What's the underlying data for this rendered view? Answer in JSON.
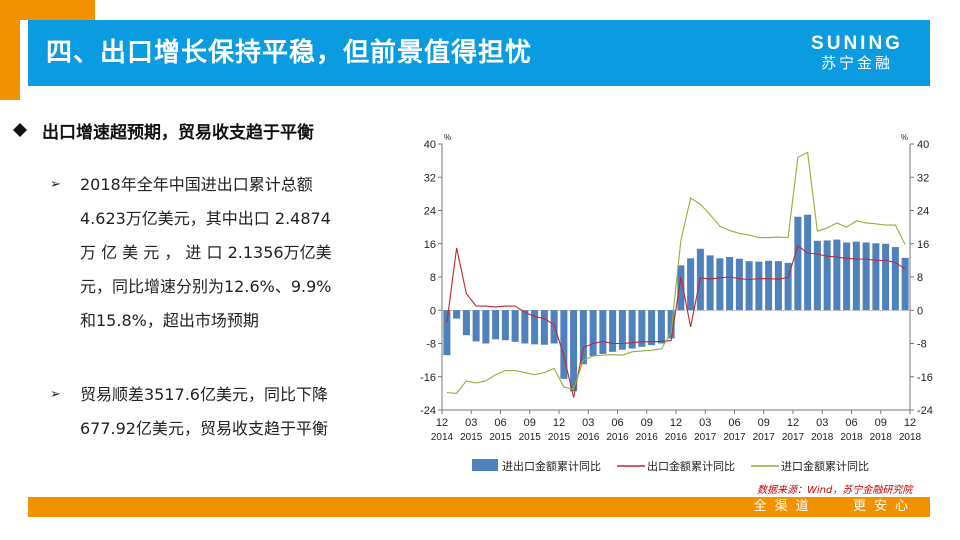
{
  "header": {
    "title": "四、出口增长保持平稳，但前景值得担忧",
    "logo_en": "SUNING",
    "logo_cn": "苏宁金融"
  },
  "section": {
    "subheading": "出口增速超预期，贸易收支趋于平衡",
    "bullets": [
      "2018年全年中国进出口累计总额4.623万亿美元，其中出口 2.4874 万 亿 美 元 ， 进 口 2.1356万亿美元，同比增速分别为12.6%、9.9%和15.8%，超出市场预期",
      "贸易顺差3517.6亿美元，同比下降677.92亿美元，贸易收支趋于平衡"
    ]
  },
  "footer": {
    "slogan": "全渠道   更安心",
    "source": "数据来源：Wind，苏宁金融研究院"
  },
  "colors": {
    "header_blue": "#0a9be0",
    "orange": "#f39200",
    "bar_blue": "#4f81bd",
    "export_red": "#c0272d",
    "import_green": "#8fb03a"
  },
  "chart_data": {
    "type": "bar",
    "unit_left": "%",
    "unit_right": "%",
    "ylim": [
      -24,
      40
    ],
    "yticks": [
      -24,
      -16,
      -8,
      0,
      8,
      16,
      24,
      32,
      40
    ],
    "xticks": [
      {
        "top": "12",
        "bottom": "2014"
      },
      {
        "top": "03",
        "bottom": "2015"
      },
      {
        "top": "06",
        "bottom": "2015"
      },
      {
        "top": "09",
        "bottom": "2015"
      },
      {
        "top": "12",
        "bottom": "2015"
      },
      {
        "top": "03",
        "bottom": "2016"
      },
      {
        "top": "06",
        "bottom": "2016"
      },
      {
        "top": "09",
        "bottom": "2016"
      },
      {
        "top": "12",
        "bottom": "2016"
      },
      {
        "top": "03",
        "bottom": "2017"
      },
      {
        "top": "06",
        "bottom": "2017"
      },
      {
        "top": "09",
        "bottom": "2017"
      },
      {
        "top": "12",
        "bottom": "2017"
      },
      {
        "top": "03",
        "bottom": "2018"
      },
      {
        "top": "06",
        "bottom": "2018"
      },
      {
        "top": "09",
        "bottom": "2018"
      },
      {
        "top": "12",
        "bottom": "2018"
      }
    ],
    "categories": [
      "2015-01",
      "2015-02",
      "2015-03",
      "2015-04",
      "2015-05",
      "2015-06",
      "2015-07",
      "2015-08",
      "2015-09",
      "2015-10",
      "2015-11",
      "2015-12",
      "2016-01",
      "2016-02",
      "2016-03",
      "2016-04",
      "2016-05",
      "2016-06",
      "2016-07",
      "2016-08",
      "2016-09",
      "2016-10",
      "2016-11",
      "2016-12",
      "2017-01",
      "2017-02",
      "2017-03",
      "2017-04",
      "2017-05",
      "2017-06",
      "2017-07",
      "2017-08",
      "2017-09",
      "2017-10",
      "2017-11",
      "2017-12",
      "2018-01",
      "2018-02",
      "2018-03",
      "2018-04",
      "2018-05",
      "2018-06",
      "2018-07",
      "2018-08",
      "2018-09",
      "2018-10",
      "2018-11",
      "2018-12"
    ],
    "series": [
      {
        "name": "进出口金额累计同比",
        "type": "bar",
        "values": [
          -10.8,
          -2,
          -6,
          -7.5,
          -8,
          -7,
          -7.2,
          -7.6,
          -8,
          -8.2,
          -8.3,
          -8,
          -16.5,
          -19.5,
          -13,
          -11,
          -10.5,
          -10,
          -9.5,
          -9.2,
          -8.8,
          -8.4,
          -8,
          -6.8,
          10.8,
          12.5,
          14.8,
          13.2,
          12.5,
          12.8,
          12.4,
          11.8,
          11.7,
          11.9,
          11.8,
          11.4,
          22.5,
          23,
          16.7,
          16.8,
          17,
          16.3,
          16.5,
          16.3,
          16.1,
          16,
          15.2,
          12.6
        ]
      },
      {
        "name": "出口金额累计同比",
        "type": "line",
        "values": [
          -3,
          15,
          4,
          1,
          1,
          0.8,
          1,
          1,
          -0.5,
          -1.5,
          -2,
          -3.5,
          -11,
          -21,
          -9,
          -8,
          -7.5,
          -8,
          -8,
          -7.8,
          -7.6,
          -7.6,
          -7.5,
          -7.3,
          8,
          -4,
          7.8,
          7.5,
          7.8,
          8,
          7.6,
          7.4,
          7.6,
          7.6,
          7.5,
          7.9,
          15.5,
          13.8,
          13.5,
          13,
          12.8,
          12.5,
          12.3,
          12.3,
          12,
          12,
          11.5,
          9.9
        ]
      },
      {
        "name": "进口金额累计同比",
        "type": "line",
        "values": [
          -19.8,
          -20,
          -17,
          -17.5,
          -17,
          -15.5,
          -14.5,
          -14.5,
          -15,
          -15.5,
          -15,
          -14,
          -18.5,
          -19,
          -12,
          -11,
          -10.8,
          -10.7,
          -10.8,
          -10,
          -9.8,
          -9.6,
          -9.3,
          -5.3,
          16.8,
          27,
          25.5,
          23,
          20.2,
          19.2,
          18.5,
          18.1,
          17.5,
          17.5,
          17.6,
          17.5,
          36.8,
          38,
          19,
          19.8,
          21,
          20,
          21.5,
          21,
          20.8,
          20.5,
          20.5,
          15.8
        ]
      }
    ]
  }
}
